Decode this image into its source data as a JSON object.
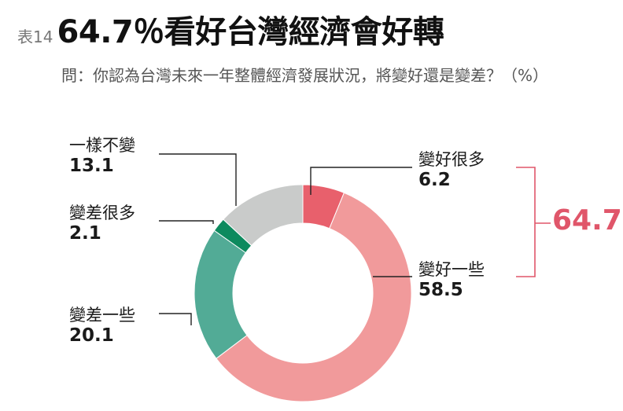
{
  "header": {
    "table_no": "表14",
    "title": "64.7％看好台灣經濟會好轉",
    "question": "問：你認為台灣未來一年整體經濟發展狀況，將變好還是變差？（%）"
  },
  "chart_data": {
    "type": "pie",
    "variant": "donut",
    "title": "64.7％看好台灣經濟會好轉",
    "slices": [
      {
        "label": "變好很多",
        "value": 6.2,
        "value_text": "6.2",
        "color": "#e8606c"
      },
      {
        "label": "變好一些",
        "value": 58.5,
        "value_text": "58.5",
        "color": "#f19a9b"
      },
      {
        "label": "變差一些",
        "value": 20.1,
        "value_text": "20.1",
        "color": "#52ab96"
      },
      {
        "label": "變差很多",
        "value": 2.1,
        "value_text": "2.1",
        "color": "#0d8a5e"
      },
      {
        "label": "一樣不變",
        "value": 13.1,
        "value_text": "13.1",
        "color": "#c9cbca"
      }
    ],
    "bracket_total": {
      "value": 64.7,
      "text": "64.7",
      "color": "#e0566a",
      "covers": [
        "變好很多",
        "變好一些"
      ]
    }
  }
}
